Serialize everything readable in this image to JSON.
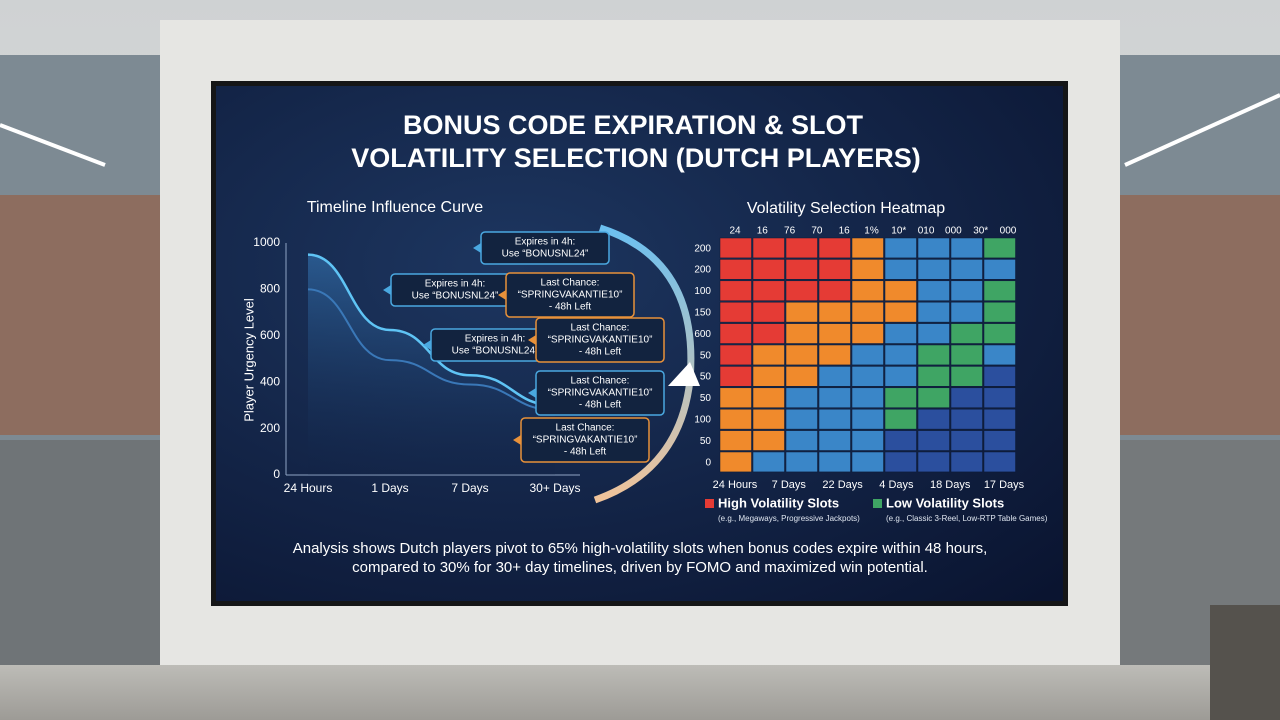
{
  "title": [
    "BONUS CODE EXPIRATION & SLOT",
    "VOLATILITY SELECTION (DUTCH PLAYERS)"
  ],
  "caption": [
    "Analysis shows Dutch players pivot to 65% high-volatility slots when bonus codes expire within 48 hours,",
    "compared to 30% for 30+ day timelines, driven by FOMO and maximized win potential."
  ],
  "chart_data": [
    {
      "type": "line",
      "title": "Timeline Influence Curve",
      "y_label": "Player Urgency Level",
      "categories": [
        "24 Hours",
        "1 Days",
        "7 Days",
        "30+ Days"
      ],
      "series": [
        {
          "color": "#5fc4f5",
          "values": [
            950,
            625,
            430,
            300
          ]
        },
        {
          "color": "#3a78b8",
          "values": [
            800,
            495,
            390,
            280
          ]
        }
      ],
      "ylim": [
        0,
        1000
      ],
      "yticks": [
        0,
        200,
        400,
        600,
        800,
        1000
      ],
      "grid": false,
      "annotations": [
        {
          "lines": [
            "Expires in 4h:",
            "Use “BONUSNL24”"
          ],
          "color": "#4aa8e0"
        },
        {
          "lines": [
            "Expires in 4h:",
            "Use “BONUSNL24”"
          ],
          "color": "#4aa8e0"
        },
        {
          "lines": [
            "Last Chance:",
            "“SPRINGVAKANTIE10”",
            "- 48h Left"
          ],
          "color": "#e8913a"
        },
        {
          "lines": [
            "Expires in 4h:",
            "Use “BONUSNL24”"
          ],
          "color": "#4aa8e0"
        },
        {
          "lines": [
            "Last Chance:",
            "“SPRINGVAKANTIE10”",
            "- 48h Left"
          ],
          "color": "#e8913a"
        },
        {
          "lines": [
            "Last Chance:",
            "“SPRINGVAKANTIE10”",
            "- 48h Left"
          ],
          "color": "#4aa8e0"
        },
        {
          "lines": [
            "Last Chance:",
            "“SPRINGVAKANTIE10”",
            "- 48h Left"
          ],
          "color": "#e8913a"
        }
      ]
    },
    {
      "type": "heatmap",
      "title": "Volatility Selection Heatmap",
      "top_labels": [
        "24",
        "16",
        "76",
        "70",
        "16",
        "1%",
        "10*",
        "010",
        "000",
        "30*",
        "000"
      ],
      "row_labels": [
        "200",
        "200",
        "100",
        "150",
        "600",
        "50",
        "50",
        "50",
        "100",
        "50",
        "0"
      ],
      "bottom_labels": [
        "24 Hours",
        "7 Days",
        "22 Days",
        "4 Days",
        "18 Days",
        "17 Days"
      ],
      "colorscale": [
        "#2b4f9e",
        "#3fa564",
        "#3a86c8",
        "#f08a2c",
        "#e53b35"
      ],
      "values": [
        [
          4,
          4,
          4,
          4,
          3,
          2,
          2,
          2,
          1
        ],
        [
          4,
          4,
          4,
          4,
          3,
          2,
          2,
          2,
          2
        ],
        [
          4,
          4,
          4,
          4,
          3,
          3,
          2,
          2,
          1
        ],
        [
          4,
          4,
          3,
          3,
          3,
          3,
          2,
          2,
          1
        ],
        [
          4,
          4,
          3,
          3,
          3,
          2,
          2,
          1,
          1
        ],
        [
          4,
          3,
          3,
          3,
          2,
          2,
          1,
          1,
          2
        ],
        [
          4,
          3,
          3,
          2,
          2,
          2,
          1,
          1,
          0
        ],
        [
          3,
          3,
          2,
          2,
          2,
          1,
          1,
          0,
          0
        ],
        [
          3,
          3,
          2,
          2,
          2,
          1,
          0,
          0,
          0
        ],
        [
          3,
          3,
          2,
          2,
          2,
          0,
          0,
          0,
          0
        ],
        [
          3,
          2,
          2,
          2,
          2,
          0,
          0,
          0,
          0
        ]
      ],
      "legend": [
        {
          "name": "High Volatility Slots",
          "note": "(e.g., Megaways, Progressive Jackpots)",
          "color": "#e53b35"
        },
        {
          "name": "Low Volatility Slots",
          "note": "(e.g., Classic 3-Reel, Low-RTP Table Games)",
          "color": "#3fa564"
        }
      ]
    }
  ]
}
